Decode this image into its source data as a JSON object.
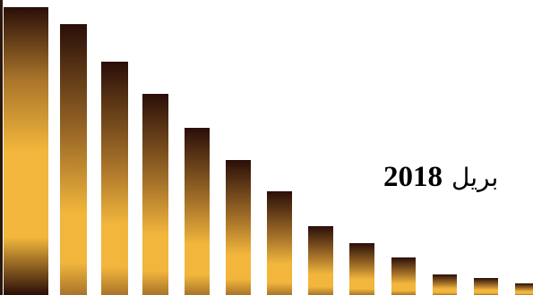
{
  "caption": {
    "year": "2018",
    "word_fragment": "بريل"
  },
  "colors": {
    "bar_dark": "#2a0e08",
    "bar_mid": "#a8742a",
    "bar_light": "#f2b63c",
    "background": "#ffffff"
  },
  "bars": {
    "relative_levels": [
      1.0,
      0.94,
      0.81,
      0.7,
      0.58,
      0.47,
      0.36,
      0.24,
      0.18,
      0.13,
      0.07,
      0.06,
      0.04
    ]
  }
}
